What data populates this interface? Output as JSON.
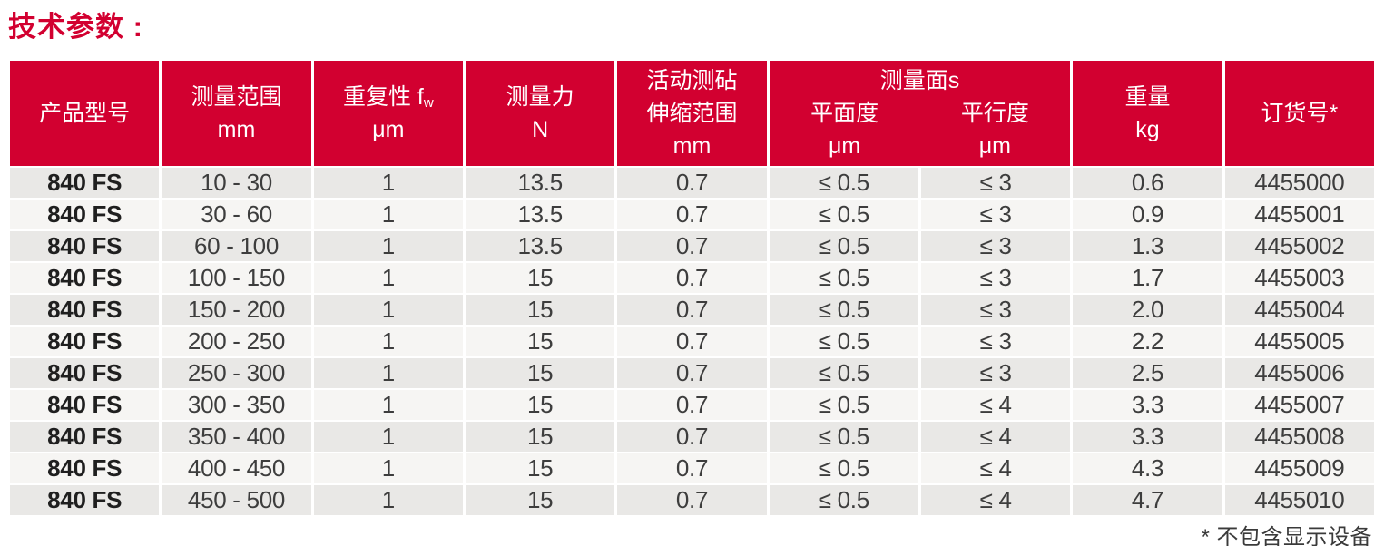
{
  "page": {
    "title": "技术参数 :",
    "footnote": "* 不包含显示设备"
  },
  "colors": {
    "brand_red": "#d20030",
    "row_odd": "#e9e8e6",
    "row_even": "#f6f5f3",
    "header_text": "#ffffff",
    "body_text": "#3d3d3d"
  },
  "table": {
    "header": {
      "product_model": "产品型号",
      "measuring_range": {
        "line1": "测量范围",
        "unit": "mm"
      },
      "repeatability": {
        "line1_main": "重复性 f",
        "line1_sub": "w",
        "unit": "μm"
      },
      "measuring_force": {
        "line1": "测量力",
        "unit": "N"
      },
      "anvil_travel": {
        "line1": "活动测砧",
        "line2": "伸缩范围",
        "unit": "mm"
      },
      "measuring_faces": {
        "group_label": "测量面s",
        "sub1_label": "平面度",
        "sub1_unit": "μm",
        "sub2_label": "平行度",
        "sub2_unit": "μm"
      },
      "weight": {
        "line1": "重量",
        "unit": "kg"
      },
      "order_no": "订货号*"
    },
    "column_keys": [
      "product-model",
      "measuring-range",
      "repeatability",
      "measuring-force",
      "anvil-travel",
      "flatness",
      "parallelism",
      "weight",
      "order-number"
    ],
    "rows": [
      [
        "840 FS",
        "10 - 30",
        "1",
        "13.5",
        "0.7",
        "≤ 0.5",
        "≤ 3",
        "0.6",
        "4455000"
      ],
      [
        "840 FS",
        "30 - 60",
        "1",
        "13.5",
        "0.7",
        "≤ 0.5",
        "≤ 3",
        "0.9",
        "4455001"
      ],
      [
        "840 FS",
        "60 - 100",
        "1",
        "13.5",
        "0.7",
        "≤ 0.5",
        "≤ 3",
        "1.3",
        "4455002"
      ],
      [
        "840 FS",
        "100 - 150",
        "1",
        "15",
        "0.7",
        "≤ 0.5",
        "≤ 3",
        "1.7",
        "4455003"
      ],
      [
        "840 FS",
        "150 - 200",
        "1",
        "15",
        "0.7",
        "≤ 0.5",
        "≤ 3",
        "2.0",
        "4455004"
      ],
      [
        "840 FS",
        "200 - 250",
        "1",
        "15",
        "0.7",
        "≤ 0.5",
        "≤ 3",
        "2.2",
        "4455005"
      ],
      [
        "840 FS",
        "250 - 300",
        "1",
        "15",
        "0.7",
        "≤ 0.5",
        "≤ 3",
        "2.5",
        "4455006"
      ],
      [
        "840 FS",
        "300 - 350",
        "1",
        "15",
        "0.7",
        "≤ 0.5",
        "≤ 4",
        "3.3",
        "4455007"
      ],
      [
        "840 FS",
        "350 - 400",
        "1",
        "15",
        "0.7",
        "≤ 0.5",
        "≤ 4",
        "3.3",
        "4455008"
      ],
      [
        "840 FS",
        "400 - 450",
        "1",
        "15",
        "0.7",
        "≤ 0.5",
        "≤ 4",
        "4.3",
        "4455009"
      ],
      [
        "840 FS",
        "450 - 500",
        "1",
        "15",
        "0.7",
        "≤ 0.5",
        "≤ 4",
        "4.7",
        "4455010"
      ]
    ]
  }
}
